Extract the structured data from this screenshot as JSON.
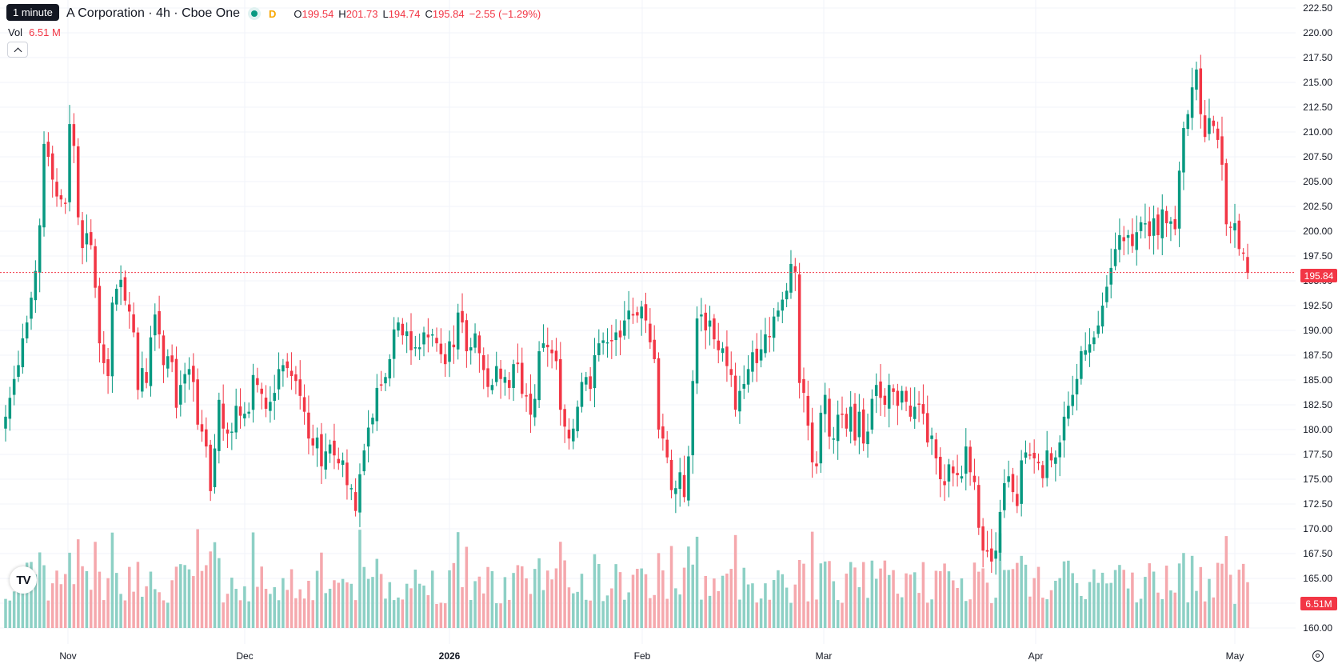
{
  "legend": {
    "tooltip": "1 minute",
    "title": "A Corporation · 4h · Cboe One",
    "interval_flag": "D",
    "open_label": "O",
    "open": "199.54",
    "high_label": "H",
    "high": "201.73",
    "low_label": "L",
    "low": "194.74",
    "close_label": "C",
    "close": "195.84",
    "change": "−2.55 (−1.29%)"
  },
  "volume": {
    "label": "Vol",
    "value": "6.51 M",
    "tag": "6.51M"
  },
  "price_tag": "195.84",
  "colors": {
    "up": "#089981",
    "down": "#f23645",
    "vol_up": "#8dd0c5",
    "vol_down": "#f5a8ad"
  },
  "icons": {
    "logo": "tradingview-logo-icon",
    "collapse": "chevron-up-icon",
    "settings": "gear-icon"
  },
  "chart_data": {
    "type": "candlestick",
    "ylim": [
      159.3,
      223.2
    ],
    "y_ticks": [
      "222.50",
      "220.00",
      "217.50",
      "215.00",
      "212.50",
      "210.00",
      "207.50",
      "205.00",
      "202.50",
      "200.00",
      "197.50",
      "195.00",
      "192.50",
      "190.00",
      "187.50",
      "185.00",
      "182.50",
      "180.00",
      "177.50",
      "175.00",
      "172.50",
      "170.00",
      "167.50",
      "165.00",
      "162.50",
      "160.00"
    ],
    "x_labels": [
      "Nov",
      "Dec",
      "2026",
      "Feb",
      "Mar",
      "Apr",
      "May"
    ],
    "last_price": 195.84,
    "closes": [
      181.3,
      183.2,
      185.1,
      186.5,
      189.2,
      190.8,
      193.3,
      196.0,
      200.6,
      208.8,
      207.5,
      205.2,
      203.5,
      203.2,
      202.8,
      210.8,
      208.6,
      201.4,
      198.3,
      199.8,
      198.6,
      194.3,
      188.7,
      186.7,
      185.4,
      192.8,
      194.2,
      195.1,
      193.0,
      191.9,
      189.8,
      184.0,
      186.2,
      184.7,
      189.3,
      191.6,
      189.6,
      186.5,
      187.4,
      186.8,
      182.2,
      184.5,
      185.6,
      186.1,
      184.8,
      180.5,
      179.8,
      178.3,
      173.8,
      178.1,
      183.0,
      180.1,
      179.6,
      179.8,
      182.4,
      181.4,
      181.6,
      181.8,
      185.5,
      184.5,
      183.6,
      182.1,
      182.8,
      183.7,
      186.1,
      186.5,
      186.2,
      185.4,
      184.9,
      183.4,
      181.8,
      179.1,
      178.4,
      179.2,
      176.3,
      177.8,
      178.5,
      177.4,
      176.6,
      176.9,
      174.4,
      174.1,
      171.8,
      175.5,
      177.9,
      180.2,
      181.2,
      184.2,
      184.5,
      185.3,
      187.1,
      190.1,
      190.8,
      189.5,
      189.9,
      188.0,
      188.3,
      188.3,
      189.8,
      189.3,
      189.6,
      188.7,
      187.6,
      186.6,
      188.9,
      188.3,
      191.8,
      190.8,
      187.9,
      188.3,
      189.7,
      187.7,
      186.0,
      184.3,
      184.5,
      186.4,
      185.1,
      185.3,
      184.2,
      186.6,
      186.6,
      183.6,
      183.4,
      181.5,
      183.1,
      187.9,
      188.7,
      188.3,
      187.7,
      186.9,
      182.0,
      180.3,
      179.1,
      180.1,
      182.3,
      184.8,
      185.3,
      184.1,
      187.5,
      188.7,
      189.0,
      188.8,
      188.9,
      189.8,
      189.3,
      191.0,
      192.0,
      191.5,
      191.5,
      192.4,
      191.0,
      188.8,
      187.1,
      180.0,
      179.1,
      177.2,
      173.9,
      174.1,
      175.7,
      173.2,
      177.3,
      184.9,
      191.2,
      191.6,
      190.0,
      191.0,
      189.1,
      188.0,
      188.2,
      186.4,
      185.5,
      182.0,
      183.9,
      184.6,
      186.1,
      187.8,
      186.7,
      188.1,
      189.6,
      189.4,
      191.4,
      192.0,
      193.1,
      194.0,
      196.7,
      195.9,
      184.7,
      183.7,
      180.4,
      176.7,
      176.3,
      181.7,
      183.5,
      179.3,
      179.1,
      181.5,
      181.5,
      180.1,
      182.3,
      178.9,
      181.8,
      178.6,
      179.8,
      183.1,
      184.5,
      183.2,
      182.5,
      184.5,
      183.8,
      182.4,
      183.9,
      182.8,
      181.3,
      182.3,
      182.5,
      181.6,
      178.7,
      179.4,
      177.1,
      175.0,
      174.4,
      176.5,
      175.6,
      175.4,
      175.3,
      178.3,
      175.7,
      174.7,
      170.1,
      167.8,
      167.7,
      166.7,
      167.8,
      171.7,
      174.6,
      175.3,
      173.7,
      172.3,
      176.9,
      177.7,
      177.4,
      177.1,
      176.6,
      175.1,
      177.9,
      176.9,
      177.2,
      178.7,
      181.3,
      182.4,
      183.5,
      185.1,
      187.9,
      188.0,
      188.6,
      189.3,
      190.5,
      192.5,
      194.4,
      196.3,
      198.2,
      199.6,
      199.0,
      199.6,
      198.5,
      199.9,
      200.9,
      200.8,
      199.5,
      201.3,
      199.6,
      202.2,
      200.8,
      201.0,
      200.2,
      206.1,
      210.4,
      211.8,
      214.5,
      216.3,
      211.8,
      209.5,
      211.4,
      210.6,
      209.2,
      206.7,
      200.7,
      200.4,
      200.8,
      198.2,
      197.8,
      195.8
    ]
  }
}
